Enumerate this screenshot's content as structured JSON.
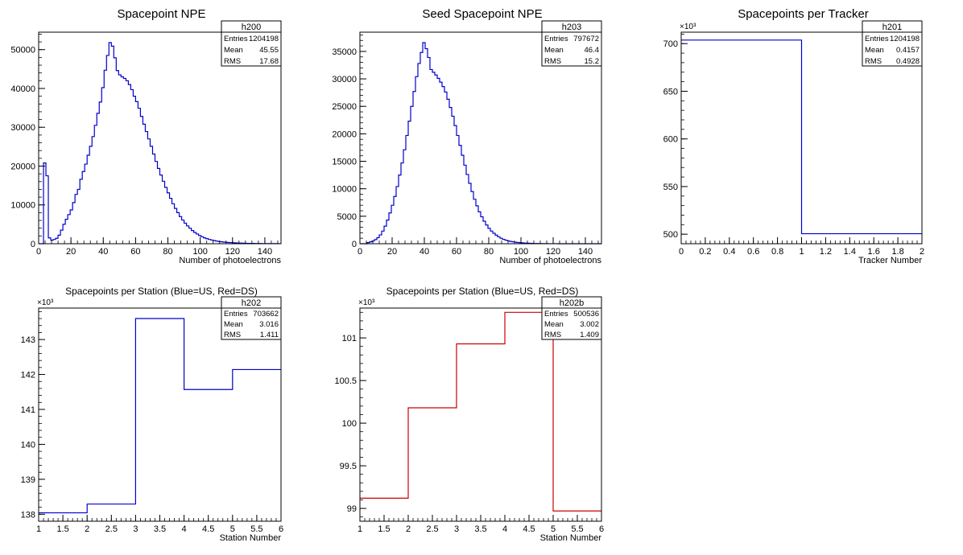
{
  "colors": {
    "blue": "#0000cc",
    "red": "#cc0000",
    "axis": "#000000",
    "frame": "#000000"
  },
  "chart_data": [
    {
      "type": "bar",
      "title": "Spacepoint NPE",
      "xlabel": "Number of photoelectrons",
      "ylabel": "",
      "xlim": [
        0,
        150
      ],
      "ylim": [
        0,
        54500
      ],
      "y_exponent": "",
      "bin_width": 1.5,
      "line_color": "blue",
      "xticks": [
        0,
        20,
        40,
        60,
        80,
        100,
        120,
        140
      ],
      "yticks": [
        0,
        10000,
        20000,
        30000,
        40000,
        50000
      ],
      "stats": {
        "name": "h200",
        "rows": [
          [
            "Entries",
            "1204198"
          ],
          [
            "Mean",
            "45.55"
          ],
          [
            "RMS",
            "17.68"
          ]
        ]
      },
      "values": [
        0,
        0,
        20800,
        17500,
        1500,
        900,
        1100,
        1400,
        2200,
        3500,
        5000,
        6300,
        7500,
        8700,
        10600,
        12700,
        14000,
        16600,
        18600,
        20500,
        22800,
        25100,
        27600,
        30500,
        33600,
        36500,
        40200,
        44700,
        48500,
        51800,
        50900,
        47900,
        44600,
        43500,
        43000,
        42600,
        42000,
        41000,
        39700,
        38000,
        36600,
        34900,
        32800,
        30800,
        28900,
        27000,
        25100,
        23100,
        21200,
        19400,
        17700,
        16100,
        14500,
        13100,
        11700,
        10300,
        9100,
        8000,
        7000,
        6100,
        5300,
        4600,
        4000,
        3400,
        2900,
        2500,
        2100,
        1800,
        1500,
        1300,
        1100,
        950,
        800,
        680,
        580,
        490,
        420,
        360,
        310,
        270,
        230,
        200,
        170,
        150,
        130,
        110,
        95,
        80,
        70,
        60,
        50,
        45,
        40,
        35,
        30,
        25,
        22,
        20,
        18,
        15
      ]
    },
    {
      "type": "bar",
      "title": "Seed Spacepoint NPE",
      "xlabel": "Number of photoelectrons",
      "ylabel": "",
      "xlim": [
        0,
        150
      ],
      "ylim": [
        0,
        38500
      ],
      "y_exponent": "",
      "bin_width": 1.5,
      "line_color": "blue",
      "xticks": [
        0,
        20,
        40,
        60,
        80,
        100,
        120,
        140
      ],
      "yticks": [
        0,
        5000,
        10000,
        15000,
        20000,
        25000,
        30000,
        35000
      ],
      "stats": {
        "name": "h203",
        "rows": [
          [
            "Entries",
            "797672"
          ],
          [
            "Mean",
            "46.4"
          ],
          [
            "RMS",
            "15.2"
          ]
        ]
      },
      "values": [
        0,
        0,
        0,
        200,
        350,
        500,
        750,
        1100,
        1600,
        2300,
        3200,
        4300,
        5600,
        7000,
        8600,
        10400,
        12500,
        14700,
        17100,
        19700,
        22300,
        25000,
        27700,
        30400,
        32800,
        34800,
        36600,
        35500,
        33900,
        31700,
        31200,
        30700,
        30100,
        29400,
        28600,
        27600,
        26300,
        24800,
        23200,
        21500,
        19700,
        17900,
        16100,
        14300,
        12600,
        11000,
        9500,
        8100,
        6900,
        5800,
        4900,
        4100,
        3400,
        2800,
        2300,
        1900,
        1550,
        1250,
        1000,
        800,
        650,
        520,
        420,
        340,
        270,
        220,
        180,
        145,
        115,
        95,
        75,
        60,
        48,
        38,
        30,
        24,
        19,
        15,
        12,
        10,
        8,
        6,
        5,
        4,
        3,
        3,
        2,
        2,
        2,
        1,
        1,
        1,
        1,
        1,
        1,
        0,
        0,
        0,
        0,
        0
      ]
    },
    {
      "type": "bar",
      "title": "Spacepoints per Tracker",
      "xlabel": "Tracker Number",
      "ylabel": "",
      "xlim": [
        0,
        2
      ],
      "ylim": [
        490,
        712
      ],
      "y_exponent": "×10³",
      "bin_width": 1,
      "line_color": "blue",
      "xticks": [
        0,
        0.2,
        0.4,
        0.6,
        0.8,
        1,
        1.2,
        1.4,
        1.6,
        1.8,
        2
      ],
      "yticks": [
        500,
        550,
        600,
        650,
        700
      ],
      "stats": {
        "name": "h201",
        "rows": [
          [
            "Entries",
            "1204198"
          ],
          [
            "Mean",
            "0.4157"
          ],
          [
            "RMS",
            "0.4928"
          ]
        ]
      },
      "values": [
        703.7,
        500.5
      ]
    },
    {
      "type": "bar",
      "title": "Spacepoints per Station (Blue=US, Red=DS)",
      "xlabel": "Station Number",
      "ylabel": "",
      "xlim": [
        1,
        6
      ],
      "ylim": [
        137.8,
        143.9
      ],
      "y_exponent": "×10³",
      "bin_width": 1,
      "line_color": "blue",
      "xticks": [
        1,
        1.5,
        2,
        2.5,
        3,
        3.5,
        4,
        4.5,
        5,
        5.5,
        6
      ],
      "yticks": [
        138,
        139,
        140,
        141,
        142,
        143
      ],
      "stats": {
        "name": "h202",
        "rows": [
          [
            "Entries",
            "703662"
          ],
          [
            "Mean",
            "3.016"
          ],
          [
            "RMS",
            "1.411"
          ]
        ]
      },
      "values": [
        138.04,
        138.29,
        143.6,
        141.57,
        142.14
      ]
    },
    {
      "type": "bar",
      "title": "Spacepoints per Station (Blue=US, Red=DS)",
      "xlabel": "Station Number",
      "ylabel": "",
      "xlim": [
        1,
        6
      ],
      "ylim": [
        98.85,
        101.35
      ],
      "y_exponent": "×10³",
      "bin_width": 1,
      "line_color": "red",
      "xticks": [
        1,
        1.5,
        2,
        2.5,
        3,
        3.5,
        4,
        4.5,
        5,
        5.5,
        6
      ],
      "yticks": [
        99,
        99.5,
        100,
        100.5,
        101
      ],
      "stats": {
        "name": "h202b",
        "rows": [
          [
            "Entries",
            "500536"
          ],
          [
            "Mean",
            "3.002"
          ],
          [
            "RMS",
            "1.409"
          ]
        ]
      },
      "values": [
        99.12,
        100.18,
        100.93,
        101.3,
        98.97
      ]
    }
  ]
}
